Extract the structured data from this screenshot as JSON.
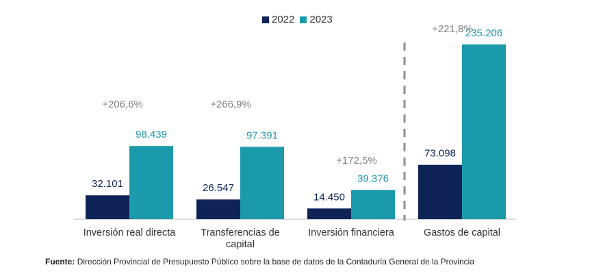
{
  "chart_data": {
    "type": "bar",
    "categories": [
      [
        "Inversión real directa"
      ],
      [
        "Transferencias de",
        "capital"
      ],
      [
        "Inversión financiera"
      ],
      [
        "Gastos de capital"
      ]
    ],
    "series": [
      {
        "name": "2022",
        "values": [
          32101,
          26547,
          14450,
          73098
        ],
        "labels": [
          "32.101",
          "26.547",
          "14.450",
          "73.098"
        ]
      },
      {
        "name": "2023",
        "values": [
          98439,
          97391,
          39376,
          235206
        ],
        "labels": [
          "98.439",
          "97.391",
          "39.376",
          "235.206"
        ]
      }
    ],
    "annotations": [
      "+206,6%",
      "+266,9%",
      "+172,5%",
      "+221,8%"
    ],
    "ylim": [
      0,
      250000
    ],
    "separator": "dashed line before last category",
    "legend_position": "top"
  },
  "colors": {
    "series_2022": "#0f2357",
    "series_2023": "#1a9aab",
    "value_label_2022": "#0f2357",
    "value_label_2023": "#1a9aab",
    "annotation": "#7f7f7f",
    "axis": "#bfbfbf",
    "separator": "#8c8c8c"
  },
  "source": {
    "label": "Fuente:",
    "text": "Dirección Provincial de Presupuesto Público sobre la base de datos de la Contaduría General de la Provincia"
  }
}
